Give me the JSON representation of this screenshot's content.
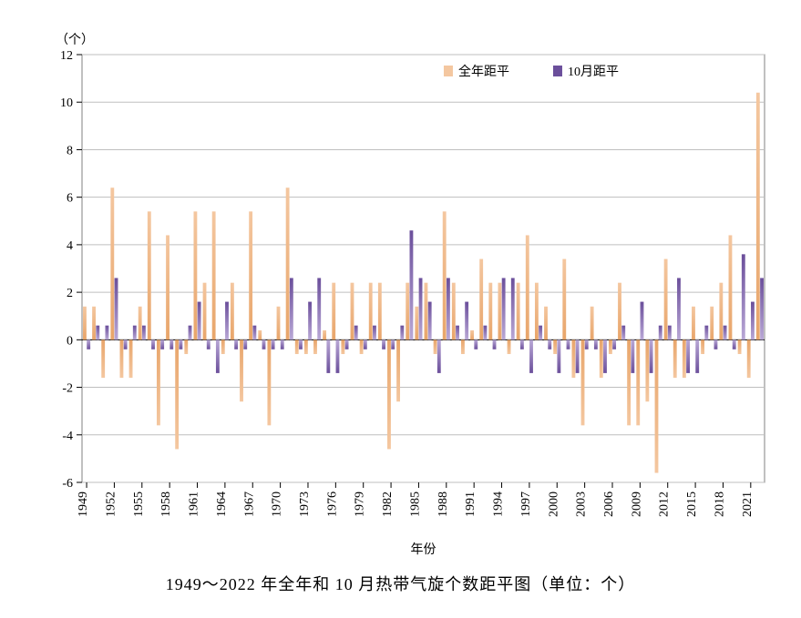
{
  "chart": {
    "type": "bar",
    "y_axis_title": "（个）",
    "x_axis_title": "年份",
    "ylim": [
      -6,
      12
    ],
    "ytick_step": 2,
    "x_start": 1949,
    "x_end": 2022,
    "xtick_step": 3,
    "background_color": "#ffffff",
    "grid_color": "#bfbfbf",
    "border_color": "#808080",
    "axis_color": "#000000",
    "tick_fontsize": 14,
    "axis_label_fontsize": 14,
    "legend": {
      "position": "top-right",
      "items": [
        {
          "label": "全年距平",
          "color_top": "#f4c7a0",
          "color_bottom": "#e8a56a"
        },
        {
          "label": "10月距平",
          "color_top": "#6b4f9b",
          "color_bottom": "#a58cc9"
        }
      ]
    },
    "series": {
      "annual": {
        "label": "全年距平",
        "color_top": "#f4c7a0",
        "color_bottom": "#e8a56a",
        "years": [
          1949,
          1950,
          1951,
          1952,
          1953,
          1954,
          1955,
          1956,
          1957,
          1958,
          1959,
          1960,
          1961,
          1962,
          1963,
          1964,
          1965,
          1966,
          1967,
          1968,
          1969,
          1970,
          1971,
          1972,
          1973,
          1974,
          1975,
          1976,
          1977,
          1978,
          1979,
          1980,
          1981,
          1982,
          1983,
          1984,
          1985,
          1986,
          1987,
          1988,
          1989,
          1990,
          1991,
          1992,
          1993,
          1994,
          1995,
          1996,
          1997,
          1998,
          1999,
          2000,
          2001,
          2002,
          2003,
          2004,
          2005,
          2006,
          2007,
          2008,
          2009,
          2010,
          2011,
          2012,
          2013,
          2014,
          2015,
          2016,
          2017,
          2018,
          2019,
          2020,
          2021,
          2022
        ],
        "values": [
          1.4,
          1.4,
          -1.6,
          6.4,
          -1.6,
          -1.6,
          1.4,
          5.4,
          -3.6,
          4.4,
          -4.6,
          -0.6,
          5.4,
          2.4,
          5.4,
          -0.6,
          2.4,
          -2.6,
          5.4,
          0.4,
          -3.6,
          1.4,
          6.4,
          -0.6,
          -0.6,
          -0.6,
          0.4,
          2.4,
          -0.6,
          2.4,
          -0.6,
          2.4,
          2.4,
          -4.6,
          -2.6,
          2.4,
          1.4,
          2.4,
          -0.6,
          5.4,
          2.4,
          -0.6,
          0.4,
          3.4,
          2.4,
          2.4,
          -0.6,
          2.4,
          4.4,
          2.4,
          1.4,
          -0.6,
          3.4,
          -1.6,
          -3.6,
          1.4,
          -1.6,
          -0.6,
          2.4,
          -3.6,
          -3.6,
          -2.6,
          -5.6,
          3.4,
          -1.6,
          -1.6,
          1.4,
          -0.6,
          1.4,
          2.4,
          4.4,
          -0.6,
          -1.6,
          10.4
        ]
      },
      "october": {
        "label": "10月距平",
        "color_top": "#6b4f9b",
        "color_bottom": "#b9a8d6",
        "years": [
          1949,
          1950,
          1951,
          1952,
          1953,
          1954,
          1955,
          1956,
          1957,
          1958,
          1959,
          1960,
          1961,
          1962,
          1963,
          1964,
          1965,
          1966,
          1967,
          1968,
          1969,
          1970,
          1971,
          1972,
          1973,
          1974,
          1975,
          1976,
          1977,
          1978,
          1979,
          1980,
          1981,
          1982,
          1983,
          1984,
          1985,
          1986,
          1987,
          1988,
          1989,
          1990,
          1991,
          1992,
          1993,
          1994,
          1995,
          1996,
          1997,
          1998,
          1999,
          2000,
          2001,
          2002,
          2003,
          2004,
          2005,
          2006,
          2007,
          2008,
          2009,
          2010,
          2011,
          2012,
          2013,
          2014,
          2015,
          2016,
          2017,
          2018,
          2019,
          2020,
          2021,
          2022
        ],
        "values": [
          -0.4,
          0.6,
          0.6,
          2.6,
          -0.4,
          0.6,
          0.6,
          -0.4,
          -0.4,
          -0.4,
          -0.4,
          0.6,
          1.6,
          -0.4,
          -1.4,
          1.6,
          -0.4,
          -0.4,
          0.6,
          -0.4,
          -0.4,
          -0.4,
          2.6,
          -0.4,
          1.6,
          2.6,
          -1.4,
          -1.4,
          -0.4,
          0.6,
          -0.4,
          0.6,
          -0.4,
          -0.4,
          0.6,
          4.6,
          2.6,
          1.6,
          -1.4,
          2.6,
          0.6,
          1.6,
          -0.4,
          0.6,
          -0.4,
          2.6,
          2.6,
          -0.4,
          -1.4,
          0.6,
          -0.4,
          -1.4,
          -0.4,
          -1.4,
          -0.4,
          -0.4,
          -1.4,
          -0.4,
          0.6,
          -1.4,
          1.6,
          -1.4,
          0.6,
          0.6,
          2.6,
          -1.4,
          -1.4,
          0.6,
          -0.4,
          0.6,
          -0.4,
          3.6,
          1.6,
          2.6
        ]
      }
    }
  },
  "caption": "1949～2022 年全年和 10 月热带气旋个数距平图（单位：个）"
}
